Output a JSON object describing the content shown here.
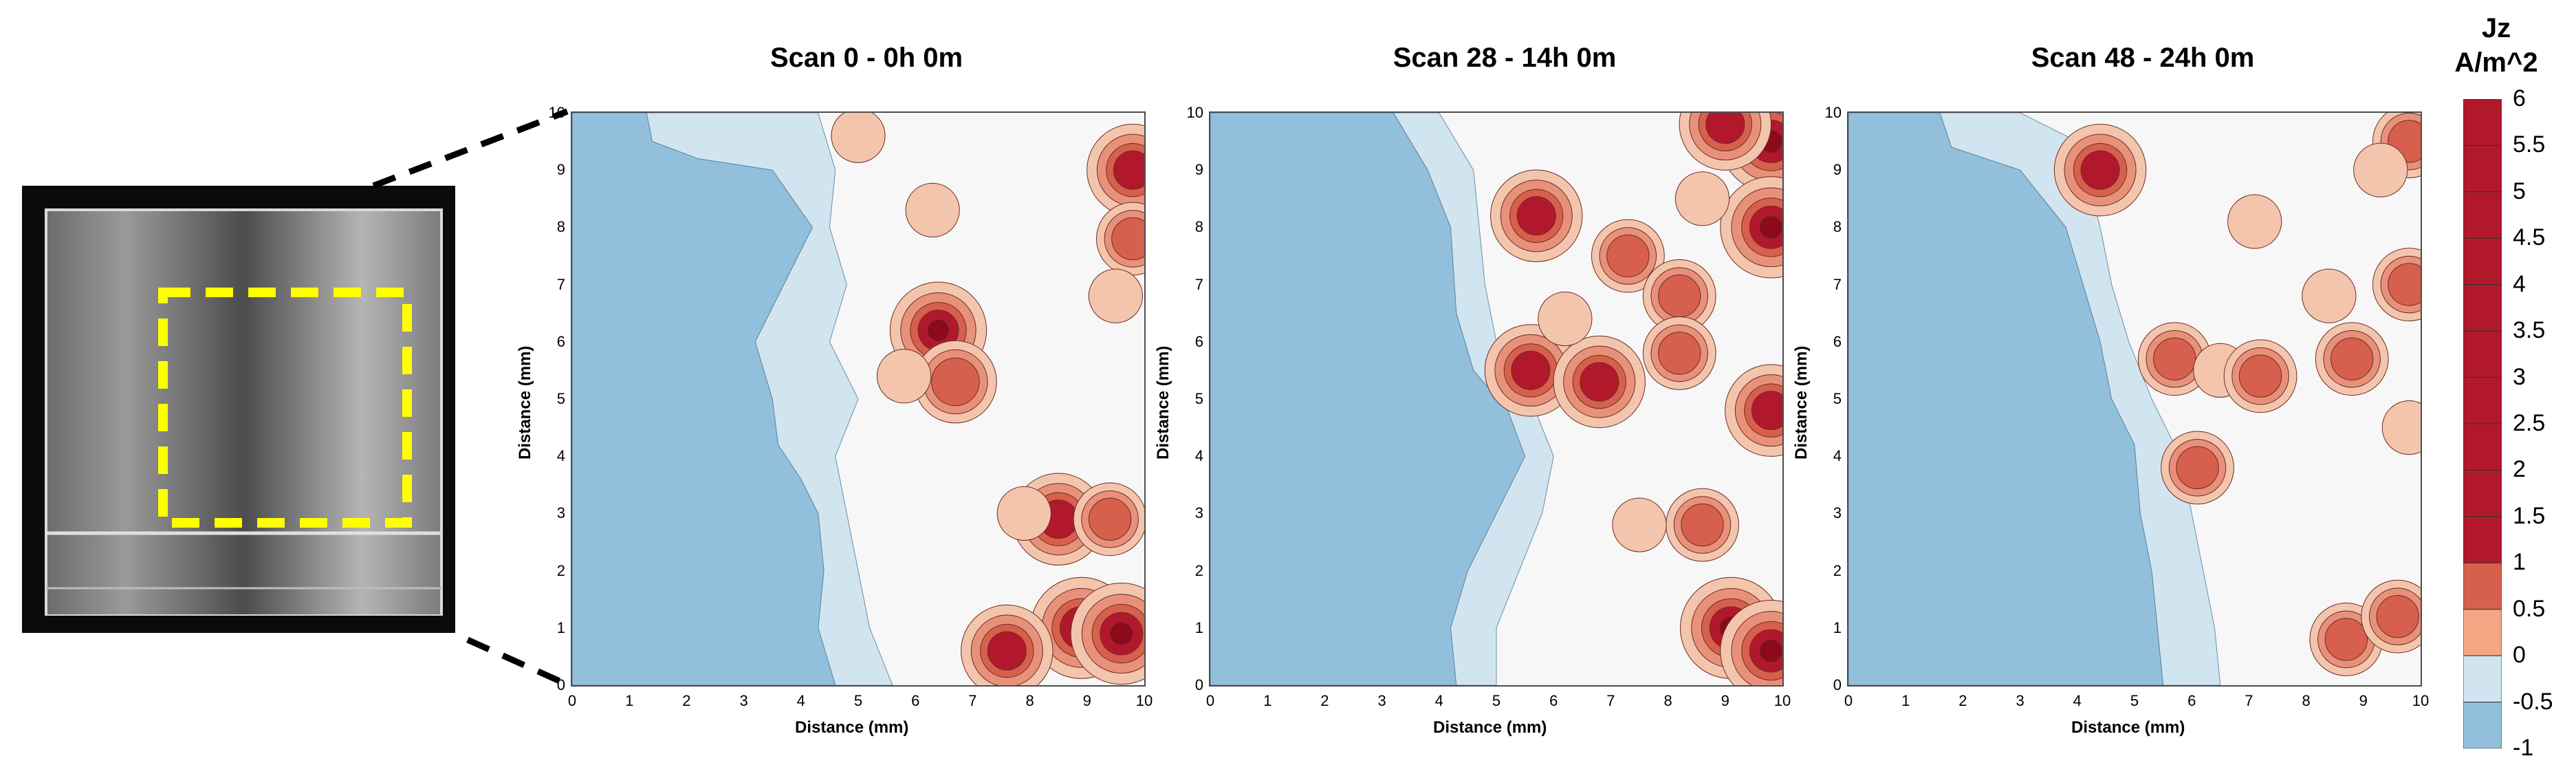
{
  "chart_data": [
    {
      "type": "heatmap",
      "title": "Scan 0 - 0h 0m",
      "xlabel": "Distance (mm)",
      "ylabel": "Distance (mm)",
      "xlim": [
        0,
        10
      ],
      "ylim": [
        0,
        10
      ],
      "x_ticks": [
        "0",
        "1",
        "2",
        "3",
        "4",
        "5",
        "6",
        "7",
        "8",
        "9",
        "10"
      ],
      "y_ticks": [
        "0",
        "1",
        "2",
        "3",
        "4",
        "5",
        "6",
        "7",
        "8",
        "9",
        "10"
      ],
      "hotspots": [
        {
          "x": 6.4,
          "y": 6.2,
          "value": 5.5
        },
        {
          "x": 6.7,
          "y": 5.3,
          "value": 4
        },
        {
          "x": 5.8,
          "y": 5.4,
          "value": 1
        },
        {
          "x": 6.3,
          "y": 8.3,
          "value": 1
        },
        {
          "x": 8.5,
          "y": 2.9,
          "value": 5
        },
        {
          "x": 9.4,
          "y": 2.9,
          "value": 3
        },
        {
          "x": 8.9,
          "y": 1.0,
          "value": 6
        },
        {
          "x": 9.6,
          "y": 0.9,
          "value": 6
        },
        {
          "x": 7.6,
          "y": 0.6,
          "value": 5
        },
        {
          "x": 9.8,
          "y": 9.0,
          "value": 5
        },
        {
          "x": 9.8,
          "y": 7.8,
          "value": 3
        },
        {
          "x": 9.5,
          "y": 6.8,
          "value": 1
        },
        {
          "x": 5.0,
          "y": 9.6,
          "value": 1
        },
        {
          "x": 7.9,
          "y": 3.0,
          "value": 1
        }
      ]
    },
    {
      "type": "heatmap",
      "title": "Scan 28 - 14h 0m",
      "xlabel": "Distance (mm)",
      "ylabel": "Distance (mm)",
      "xlim": [
        0,
        10
      ],
      "ylim": [
        0,
        10
      ],
      "x_ticks": [
        "0",
        "1",
        "2",
        "3",
        "4",
        "5",
        "6",
        "7",
        "8",
        "9",
        "10"
      ],
      "y_ticks": [
        "0",
        "1",
        "2",
        "3",
        "4",
        "5",
        "6",
        "7",
        "8",
        "9",
        "10"
      ],
      "hotspots": [
        {
          "x": 5.7,
          "y": 8.2,
          "value": 5
        },
        {
          "x": 5.6,
          "y": 5.5,
          "value": 5
        },
        {
          "x": 6.8,
          "y": 5.3,
          "value": 5
        },
        {
          "x": 7.3,
          "y": 7.5,
          "value": 3
        },
        {
          "x": 8.2,
          "y": 6.8,
          "value": 3
        },
        {
          "x": 8.2,
          "y": 5.8,
          "value": 3
        },
        {
          "x": 6.2,
          "y": 6.4,
          "value": 1
        },
        {
          "x": 9.1,
          "y": 1.0,
          "value": 6
        },
        {
          "x": 9.8,
          "y": 0.6,
          "value": 6
        },
        {
          "x": 8.6,
          "y": 2.8,
          "value": 3
        },
        {
          "x": 9.8,
          "y": 9.5,
          "value": 6
        },
        {
          "x": 9.8,
          "y": 8.0,
          "value": 6
        },
        {
          "x": 9.8,
          "y": 4.8,
          "value": 5
        },
        {
          "x": 9.0,
          "y": 9.8,
          "value": 5
        },
        {
          "x": 8.6,
          "y": 8.5,
          "value": 1
        },
        {
          "x": 7.5,
          "y": 2.8,
          "value": 1
        }
      ]
    },
    {
      "type": "heatmap",
      "title": "Scan 48 - 24h 0m",
      "xlabel": "Distance (mm)",
      "ylabel": "Distance (mm)",
      "xlim": [
        0,
        10
      ],
      "ylim": [
        0,
        10
      ],
      "x_ticks": [
        "0",
        "1",
        "2",
        "3",
        "4",
        "5",
        "6",
        "7",
        "8",
        "9",
        "10"
      ],
      "y_ticks": [
        "0",
        "1",
        "2",
        "3",
        "4",
        "5",
        "6",
        "7",
        "8",
        "9",
        "10"
      ],
      "hotspots": [
        {
          "x": 4.4,
          "y": 9.0,
          "value": 5
        },
        {
          "x": 5.7,
          "y": 5.7,
          "value": 3
        },
        {
          "x": 6.5,
          "y": 5.5,
          "value": 1
        },
        {
          "x": 7.2,
          "y": 5.4,
          "value": 3
        },
        {
          "x": 8.8,
          "y": 5.7,
          "value": 3
        },
        {
          "x": 7.1,
          "y": 8.1,
          "value": 1
        },
        {
          "x": 6.1,
          "y": 3.8,
          "value": 3
        },
        {
          "x": 8.4,
          "y": 6.8,
          "value": 1
        },
        {
          "x": 9.8,
          "y": 9.5,
          "value": 3
        },
        {
          "x": 9.8,
          "y": 7.0,
          "value": 3
        },
        {
          "x": 9.8,
          "y": 4.5,
          "value": 1
        },
        {
          "x": 8.7,
          "y": 0.8,
          "value": 3
        },
        {
          "x": 9.6,
          "y": 1.2,
          "value": 3
        },
        {
          "x": 9.3,
          "y": 9.0,
          "value": 1
        }
      ]
    }
  ],
  "colorbar": {
    "title_line1": "Jz",
    "title_line2": "A/m^2",
    "ticks": [
      "6",
      "5.5",
      "5",
      "4.5",
      "4",
      "3.5",
      "3",
      "2.5",
      "2",
      "1.5",
      "1",
      "0.5",
      "0",
      "-0.5",
      "-1"
    ],
    "colors": {
      "-1": "#2166ac",
      "-0.5": "#92c0dc",
      "0": "#d1e5f0",
      "0.5": "#f7f7f7",
      "1": "#f4c5ad",
      "1.5+": "#b2182b"
    }
  }
}
